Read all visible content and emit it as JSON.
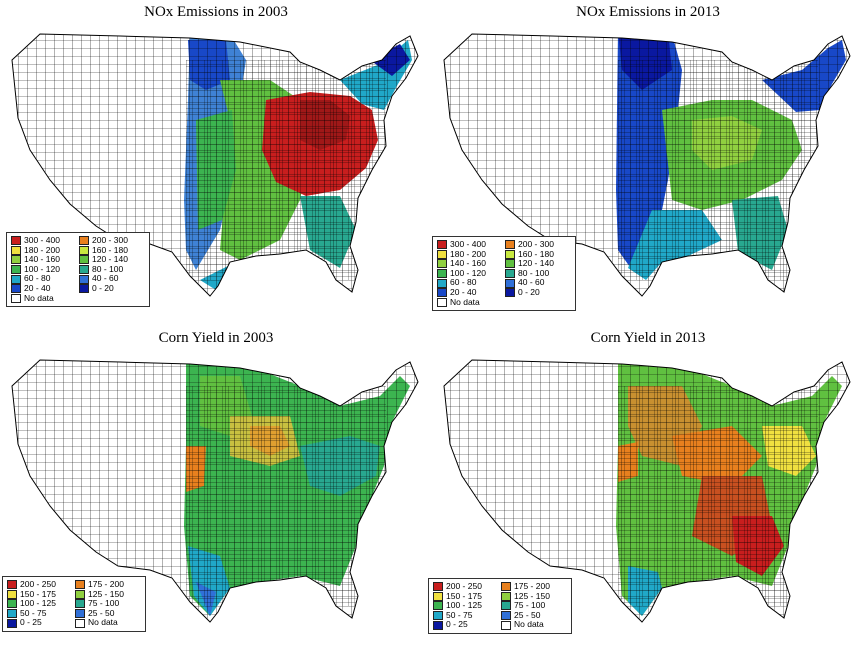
{
  "panels": [
    {
      "id": "nox-2003",
      "title": "NOx Emissions in 2003",
      "legend": [
        {
          "label": "300 - 400",
          "color": "#c81e1e"
        },
        {
          "label": "200 - 300",
          "color": "#e8801e"
        },
        {
          "label": "180 - 200",
          "color": "#f0e040"
        },
        {
          "label": "160 - 180",
          "color": "#c8e840"
        },
        {
          "label": "140 - 160",
          "color": "#90d040"
        },
        {
          "label": "120 - 140",
          "color": "#60c040"
        },
        {
          "label": "100 - 120",
          "color": "#3cb450"
        },
        {
          "label": "80 - 100",
          "color": "#28a890"
        },
        {
          "label": "60 - 80",
          "color": "#20a8c8"
        },
        {
          "label": "40 - 60",
          "color": "#3070d8"
        },
        {
          "label": "20 - 40",
          "color": "#1848c8"
        },
        {
          "label": "0 - 20",
          "color": "#0a18a0"
        },
        {
          "label": "No data",
          "color": "#ffffff"
        }
      ]
    },
    {
      "id": "nox-2013",
      "title": "NOx Emissions in 2013",
      "legend": [
        {
          "label": "300 - 400",
          "color": "#c81e1e"
        },
        {
          "label": "200 - 300",
          "color": "#e8801e"
        },
        {
          "label": "180 - 200",
          "color": "#f0e040"
        },
        {
          "label": "160 - 180",
          "color": "#c8e840"
        },
        {
          "label": "140 - 160",
          "color": "#90d040"
        },
        {
          "label": "120 - 140",
          "color": "#60c040"
        },
        {
          "label": "100 - 120",
          "color": "#3cb450"
        },
        {
          "label": "80 - 100",
          "color": "#28a890"
        },
        {
          "label": "60 - 80",
          "color": "#20a8c8"
        },
        {
          "label": "40 - 60",
          "color": "#3070d8"
        },
        {
          "label": "20 - 40",
          "color": "#1848c8"
        },
        {
          "label": "0 - 20",
          "color": "#0a18a0"
        },
        {
          "label": "No data",
          "color": "#ffffff"
        }
      ]
    },
    {
      "id": "corn-2003",
      "title": "Corn Yield in 2003",
      "legend": [
        {
          "label": "200 - 250",
          "color": "#c81e1e"
        },
        {
          "label": "175 - 200",
          "color": "#e8801e"
        },
        {
          "label": "150 - 175",
          "color": "#f0e040"
        },
        {
          "label": "125 - 150",
          "color": "#90d040"
        },
        {
          "label": "100 - 125",
          "color": "#3cb450"
        },
        {
          "label": "75 - 100",
          "color": "#28a890"
        },
        {
          "label": "50 - 75",
          "color": "#20a8c8"
        },
        {
          "label": "25 - 50",
          "color": "#3070d8"
        },
        {
          "label": "0 - 25",
          "color": "#0a18a0"
        },
        {
          "label": "No data",
          "color": "#ffffff"
        }
      ]
    },
    {
      "id": "corn-2013",
      "title": "Corn Yield in 2013",
      "legend": [
        {
          "label": "200 - 250",
          "color": "#c81e1e"
        },
        {
          "label": "175 - 200",
          "color": "#e8801e"
        },
        {
          "label": "150 - 175",
          "color": "#f0e040"
        },
        {
          "label": "125 - 150",
          "color": "#90d040"
        },
        {
          "label": "100 - 125",
          "color": "#3cb450"
        },
        {
          "label": "75 - 100",
          "color": "#28a890"
        },
        {
          "label": "50 - 75",
          "color": "#20a8c8"
        },
        {
          "label": "25 - 50",
          "color": "#3070d8"
        },
        {
          "label": "0 - 25",
          "color": "#0a18a0"
        },
        {
          "label": "No data",
          "color": "#ffffff"
        }
      ]
    }
  ]
}
